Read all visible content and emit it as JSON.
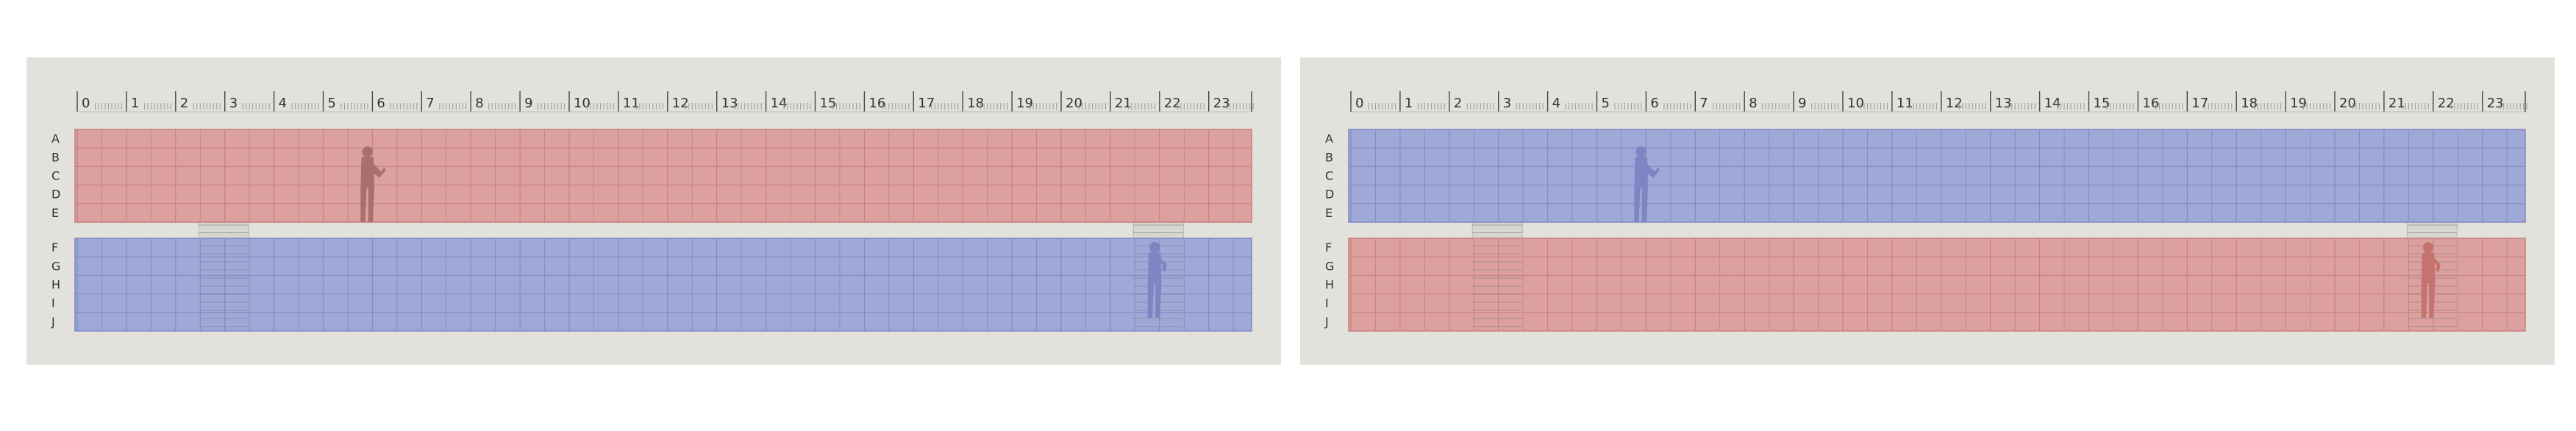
{
  "colors": {
    "panel_bg": "#e3e1dc",
    "red_fill": "#dca19e",
    "red_line": "#c47f7c",
    "blue_fill": "#9ea9d8",
    "blue_line": "#7f88bf",
    "red_figure": "#c4736f",
    "blue_figure": "#7f84c2",
    "red_figure_dark": "#a7706c",
    "ruler_ink": "#444444"
  },
  "panels": [
    {
      "ruler": [
        "0",
        "1",
        "2",
        "3",
        "4",
        "5",
        "6",
        "7",
        "8",
        "9",
        "10",
        "11",
        "12",
        "13",
        "14",
        "15",
        "16",
        "17",
        "18",
        "19",
        "20",
        "21",
        "22",
        "23"
      ],
      "top_block": {
        "color": "red",
        "rows": [
          "A",
          "B",
          "C",
          "D",
          "E"
        ]
      },
      "bottom_block": {
        "color": "blue",
        "rows": [
          "F",
          "G",
          "H",
          "I",
          "J"
        ]
      },
      "stairs": [
        {
          "column": 2.5
        },
        {
          "column": 21.5
        }
      ],
      "figures": [
        {
          "icon": "person-reading-icon",
          "block": "top",
          "column": 5.9,
          "color": "red_figure_dark"
        },
        {
          "icon": "person-standing-icon",
          "block": "bottom",
          "column": 21.9,
          "color": "blue_figure"
        }
      ]
    },
    {
      "ruler": [
        "0",
        "1",
        "2",
        "3",
        "4",
        "5",
        "6",
        "7",
        "8",
        "9",
        "10",
        "11",
        "12",
        "13",
        "14",
        "15",
        "16",
        "17",
        "18",
        "19",
        "20",
        "21",
        "22",
        "23"
      ],
      "top_block": {
        "color": "blue",
        "rows": [
          "A",
          "B",
          "C",
          "D",
          "E"
        ]
      },
      "bottom_block": {
        "color": "red",
        "rows": [
          "F",
          "G",
          "H",
          "I",
          "J"
        ]
      },
      "stairs": [
        {
          "column": 2.5
        },
        {
          "column": 21.5
        }
      ],
      "figures": [
        {
          "icon": "person-reading-icon",
          "block": "top",
          "column": 5.9,
          "color": "blue_figure"
        },
        {
          "icon": "person-standing-icon",
          "block": "bottom",
          "column": 21.9,
          "color": "red_figure"
        }
      ]
    }
  ]
}
